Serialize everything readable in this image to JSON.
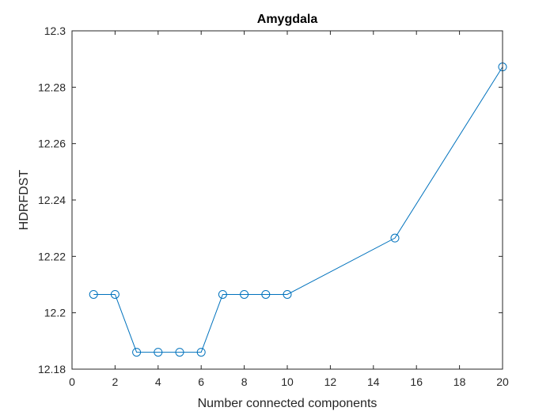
{
  "chart_data": {
    "type": "line",
    "title": "Amygdala",
    "xlabel": "Number connected components",
    "ylabel": "HDRFDST",
    "xlim": [
      0,
      20
    ],
    "ylim": [
      12.18,
      12.3
    ],
    "xticks": [
      0,
      2,
      4,
      6,
      8,
      10,
      12,
      14,
      16,
      18,
      20
    ],
    "yticks": [
      12.18,
      12.2,
      12.22,
      12.24,
      12.26,
      12.28,
      12.3
    ],
    "xtick_labels": [
      "0",
      "2",
      "4",
      "6",
      "8",
      "10",
      "12",
      "14",
      "16",
      "18",
      "20"
    ],
    "ytick_labels": [
      "12.18",
      "12.2",
      "12.22",
      "12.24",
      "12.26",
      "12.28",
      "12.3"
    ],
    "grid": false,
    "marker": "circle",
    "color": "#0072BD",
    "series": [
      {
        "x": [
          1,
          2,
          3,
          4,
          5,
          6,
          7,
          8,
          9,
          10,
          15,
          20
        ],
        "values": [
          12.2065,
          12.2065,
          12.186,
          12.186,
          12.186,
          12.186,
          12.2065,
          12.2065,
          12.2065,
          12.2065,
          12.2265,
          12.2872
        ]
      }
    ]
  }
}
